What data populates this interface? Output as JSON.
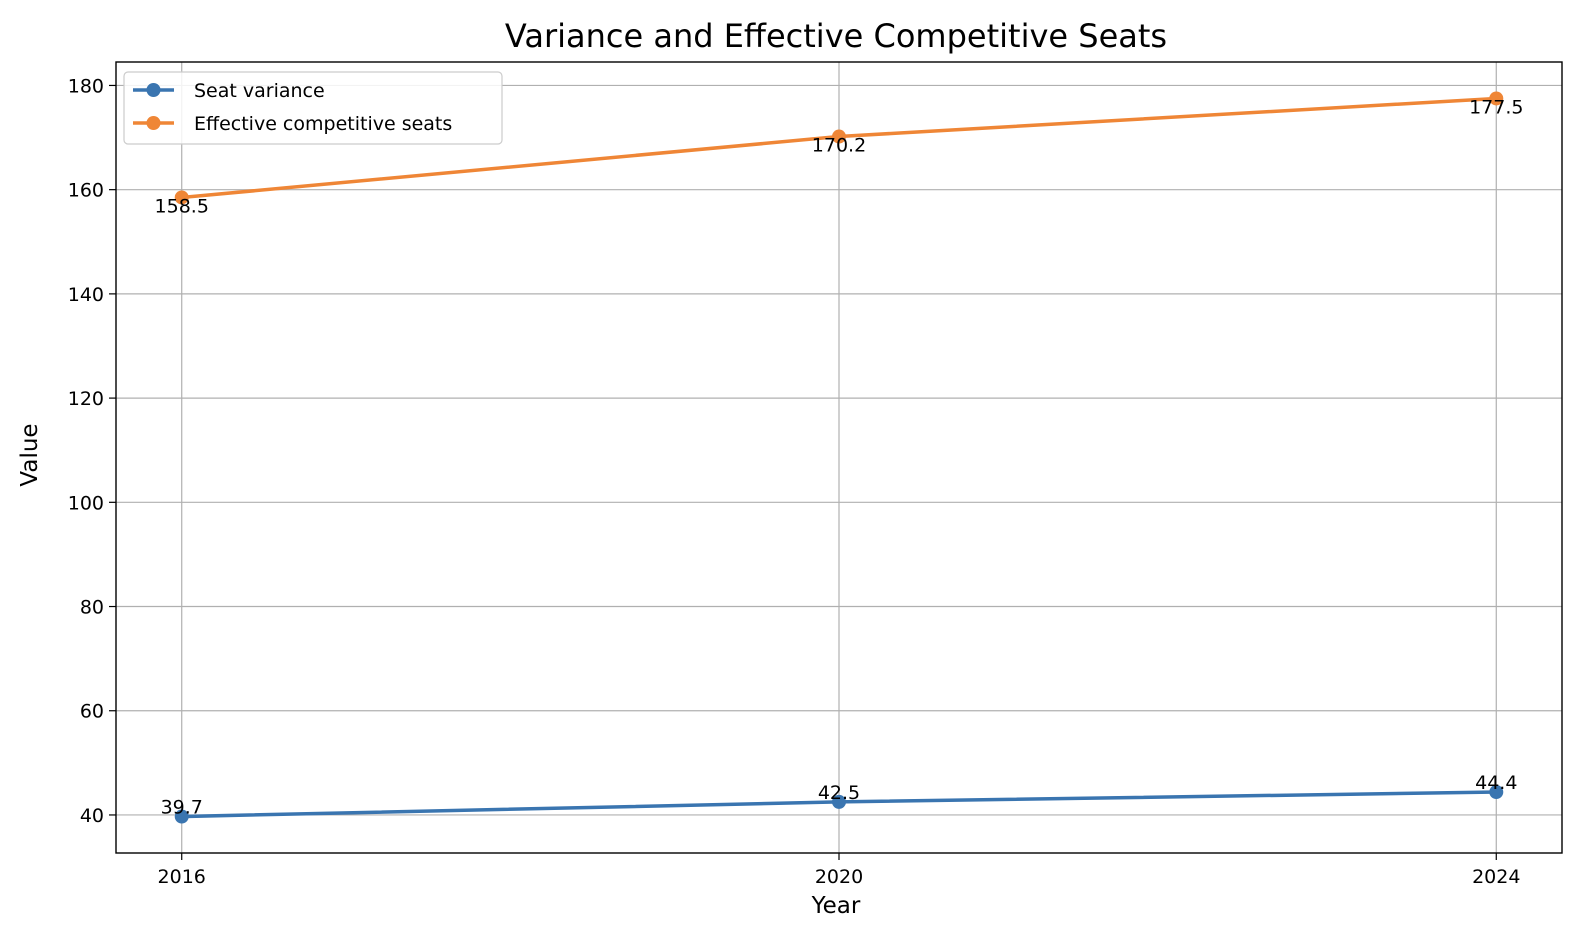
{
  "chart_data": {
    "type": "line",
    "title": "Variance and Effective Competitive Seats",
    "xlabel": "Year",
    "ylabel": "Value",
    "x": [
      2016,
      2020,
      2024
    ],
    "x_tick_labels": [
      "2016",
      "2020",
      "2024"
    ],
    "ylim": [
      32.7,
      184.5
    ],
    "y_ticks": [
      40,
      60,
      80,
      100,
      120,
      140,
      160,
      180
    ],
    "y_tick_labels": [
      "40",
      "60",
      "80",
      "100",
      "120",
      "140",
      "160",
      "180"
    ],
    "grid": true,
    "legend_position": "top-left",
    "series": [
      {
        "name": "Seat variance",
        "color": "#3a75b0",
        "values": [
          39.7,
          42.5,
          44.4
        ],
        "labels": [
          "39.7",
          "42.5",
          "44.4"
        ],
        "label_placement": "above"
      },
      {
        "name": "Effective competitive seats",
        "color": "#ef8636",
        "values": [
          158.5,
          170.2,
          177.5
        ],
        "labels": [
          "158.5",
          "170.2",
          "177.5"
        ],
        "label_placement": "below"
      }
    ]
  }
}
